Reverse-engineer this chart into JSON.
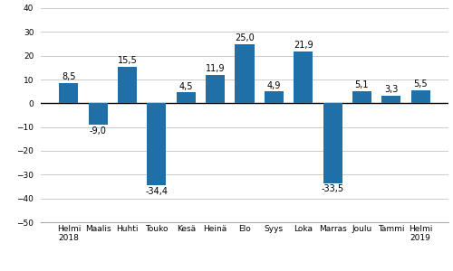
{
  "categories": [
    "Helmi\n2018",
    "Maalis",
    "Huhti",
    "Touko",
    "Kesä",
    "Heinä",
    "Elo",
    "Syys",
    "Loka",
    "Marras",
    "Joulu",
    "Tammi",
    "Helmi\n2019"
  ],
  "values": [
    8.5,
    -9.0,
    15.5,
    -34.4,
    4.5,
    11.9,
    25.0,
    4.9,
    21.9,
    -33.5,
    5.1,
    3.3,
    5.5
  ],
  "bar_color": "#1F6FA8",
  "ylim": [
    -50,
    40
  ],
  "yticks": [
    -50,
    -40,
    -30,
    -20,
    -10,
    0,
    10,
    20,
    30,
    40
  ],
  "label_fontsize": 6.5,
  "value_fontsize": 7.0,
  "bar_width": 0.65,
  "background_color": "#ffffff",
  "grid_color": "#cccccc"
}
